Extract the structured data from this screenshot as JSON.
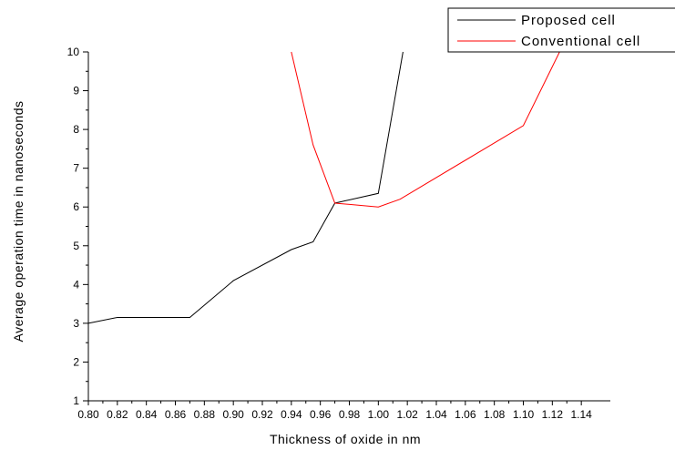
{
  "chart_data": {
    "type": "line",
    "title": "",
    "xlabel": "Thickness of oxide in nm",
    "ylabel": "Average operation time in nanoseconds",
    "xlim": [
      0.8,
      1.16
    ],
    "ylim": [
      1,
      10
    ],
    "x_ticks": [
      0.8,
      0.82,
      0.84,
      0.86,
      0.88,
      0.9,
      0.92,
      0.94,
      0.96,
      0.98,
      1.0,
      1.02,
      1.04,
      1.06,
      1.08,
      1.1,
      1.12,
      1.14
    ],
    "x_tick_labels": [
      "0.80",
      "0.82",
      "0.84",
      "0.86",
      "0.88",
      "0.90",
      "0.92",
      "0.94",
      "0.96",
      "0.98",
      "1.00",
      "1.02",
      "1.04",
      "1.06",
      "1.08",
      "1.10",
      "1.12",
      "1.14"
    ],
    "y_ticks": [
      1,
      2,
      3,
      4,
      5,
      6,
      7,
      8,
      9,
      10
    ],
    "y_tick_labels": [
      "1",
      "2",
      "3",
      "4",
      "5",
      "6",
      "7",
      "8",
      "9",
      "10"
    ],
    "grid": false,
    "legend_position": "top-right",
    "series": [
      {
        "name": "Proposed cell",
        "color": "#000000",
        "x": [
          0.8,
          0.82,
          0.87,
          0.9,
          0.94,
          0.955,
          0.97,
          1.0,
          1.017
        ],
        "y": [
          3.0,
          3.15,
          3.15,
          4.1,
          4.9,
          5.1,
          6.1,
          6.35,
          10.0
        ]
      },
      {
        "name": "Conventional cell",
        "color": "#ff0000",
        "x": [
          0.94,
          0.955,
          0.97,
          1.0,
          1.015,
          1.1,
          1.125
        ],
        "y": [
          10.0,
          7.6,
          6.1,
          6.0,
          6.2,
          8.1,
          10.0
        ]
      }
    ]
  }
}
